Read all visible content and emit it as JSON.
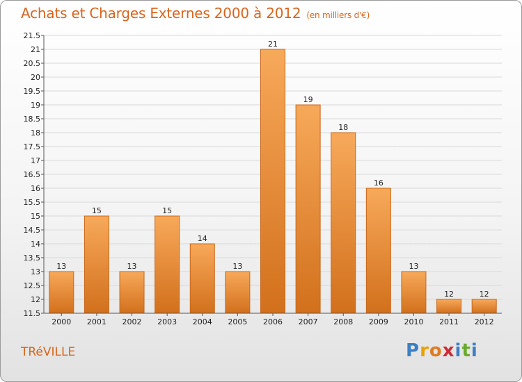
{
  "header": {
    "title": "Achats et Charges Externes 2000 à 2012",
    "subtitle": "(en milliers d'€)"
  },
  "footer": {
    "commune": "TRéVILLE",
    "logo_letters": [
      "P",
      "r",
      "o",
      "x",
      "i",
      "t",
      "i"
    ],
    "logo_colors": [
      "#3b7fc4",
      "#e8a200",
      "#e07b22",
      "#cc2a36",
      "#3b7fc4",
      "#6aaa2a",
      "#3b7fc4"
    ]
  },
  "colors": {
    "bar_top": "#f7a95a",
    "bar_bottom": "#d2701c",
    "bar_border": "#c9671a",
    "grid": "#d9d9d9"
  },
  "chart_data": {
    "type": "bar",
    "title": "Achats et Charges Externes 2000 à 2012",
    "subtitle": "(en milliers d'€)",
    "categories": [
      "2000",
      "2001",
      "2002",
      "2003",
      "2004",
      "2005",
      "2006",
      "2007",
      "2008",
      "2009",
      "2010",
      "2011",
      "2012"
    ],
    "values": [
      13,
      15,
      13,
      15,
      14,
      13,
      21,
      19,
      18,
      16,
      13,
      12,
      12
    ],
    "ylim": [
      11.5,
      21.5
    ],
    "yticks": [
      "11.5",
      "12",
      "12.5",
      "13",
      "13.5",
      "14",
      "14.5",
      "15",
      "15.5",
      "16",
      "16.5",
      "17",
      "17.5",
      "18",
      "18.5",
      "19",
      "19.5",
      "20",
      "20.5",
      "21",
      "21.5"
    ],
    "grid": true,
    "legend": "none"
  }
}
